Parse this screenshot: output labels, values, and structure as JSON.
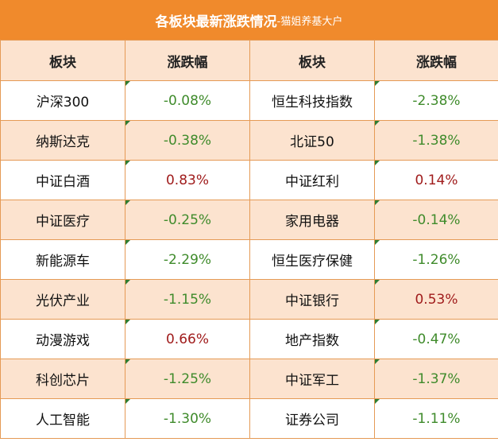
{
  "title": {
    "main": "各板块最新涨跌情况",
    "sub": "-猫姐养基大户"
  },
  "headers": [
    "板块",
    "涨跌幅",
    "板块",
    "涨跌幅"
  ],
  "rows": [
    [
      {
        "name": "沪深300",
        "change": "-0.08%",
        "dir": "neg"
      },
      {
        "name": "恒生科技指数",
        "change": "-2.38%",
        "dir": "neg"
      }
    ],
    [
      {
        "name": "纳斯达克",
        "change": "-0.38%",
        "dir": "neg"
      },
      {
        "name": "北证50",
        "change": "-1.38%",
        "dir": "neg"
      }
    ],
    [
      {
        "name": "中证白酒",
        "change": "0.83%",
        "dir": "pos"
      },
      {
        "name": "中证红利",
        "change": "0.14%",
        "dir": "pos"
      }
    ],
    [
      {
        "name": "中证医疗",
        "change": "-0.25%",
        "dir": "neg"
      },
      {
        "name": "家用电器",
        "change": "-0.14%",
        "dir": "neg"
      }
    ],
    [
      {
        "name": "新能源车",
        "change": "-2.29%",
        "dir": "neg"
      },
      {
        "name": "恒生医疗保健",
        "change": "-1.26%",
        "dir": "neg"
      }
    ],
    [
      {
        "name": "光伏产业",
        "change": "-1.15%",
        "dir": "neg"
      },
      {
        "name": "中证银行",
        "change": "0.53%",
        "dir": "pos"
      }
    ],
    [
      {
        "name": "动漫游戏",
        "change": "0.66%",
        "dir": "pos"
      },
      {
        "name": "地产指数",
        "change": "-0.47%",
        "dir": "neg"
      }
    ],
    [
      {
        "name": "科创芯片",
        "change": "-1.25%",
        "dir": "neg"
      },
      {
        "name": "中证军工",
        "change": "-1.37%",
        "dir": "neg"
      }
    ],
    [
      {
        "name": "人工智能",
        "change": "-1.30%",
        "dir": "neg"
      },
      {
        "name": "证券公司",
        "change": "-1.11%",
        "dir": "neg"
      }
    ]
  ],
  "colors": {
    "header_bar": "#F08A2C",
    "band": "#FCE3CF",
    "negative": "#3F8B2B",
    "positive": "#A01C1C"
  }
}
